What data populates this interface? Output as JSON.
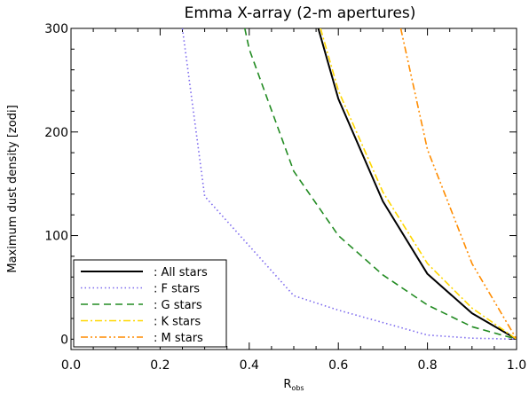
{
  "chart_data": {
    "type": "line",
    "title": "Emma X-array (2-m apertures)",
    "xlabel": "R",
    "xlabel_sub": "obs",
    "ylabel": "Maximum dust density [zodi]",
    "xlim": [
      0.0,
      1.0
    ],
    "ylim": [
      -10,
      300
    ],
    "x_ticks": [
      "0.0",
      "0.2",
      "0.4",
      "0.6",
      "0.8",
      "1.0"
    ],
    "y_ticks": [
      "0",
      "100",
      "200",
      "300"
    ],
    "grid": false,
    "legend_position": "bottom-left",
    "series": [
      {
        "name": ": All stars",
        "color": "#000000",
        "dash": "solid",
        "x": [
          0.555,
          0.6,
          0.7,
          0.8,
          0.9,
          1.0
        ],
        "y": [
          300,
          232,
          133,
          63,
          25,
          0
        ]
      },
      {
        "name": ": F stars",
        "color": "#7b68ee",
        "dash": "dotted",
        "x": [
          0.25,
          0.3,
          0.4,
          0.5,
          0.6,
          0.7,
          0.8,
          0.9,
          1.0
        ],
        "y": [
          300,
          138,
          90,
          42,
          28,
          16,
          4,
          1,
          0
        ]
      },
      {
        "name": ": G stars",
        "color": "#228b22",
        "dash": "dashed",
        "x": [
          0.39,
          0.4,
          0.5,
          0.6,
          0.7,
          0.8,
          0.9,
          1.0
        ],
        "y": [
          300,
          280,
          162,
          100,
          62,
          33,
          12,
          0
        ]
      },
      {
        "name": ": K stars",
        "color": "#ffd700",
        "dash": "dashdot",
        "x": [
          0.56,
          0.6,
          0.7,
          0.8,
          0.9,
          1.0
        ],
        "y": [
          300,
          240,
          142,
          73,
          30,
          0
        ]
      },
      {
        "name": ": M stars",
        "color": "#ff8c00",
        "dash": "dashdotdot",
        "x": [
          0.74,
          0.8,
          0.9,
          1.0
        ],
        "y": [
          300,
          183,
          73,
          0
        ]
      }
    ]
  }
}
